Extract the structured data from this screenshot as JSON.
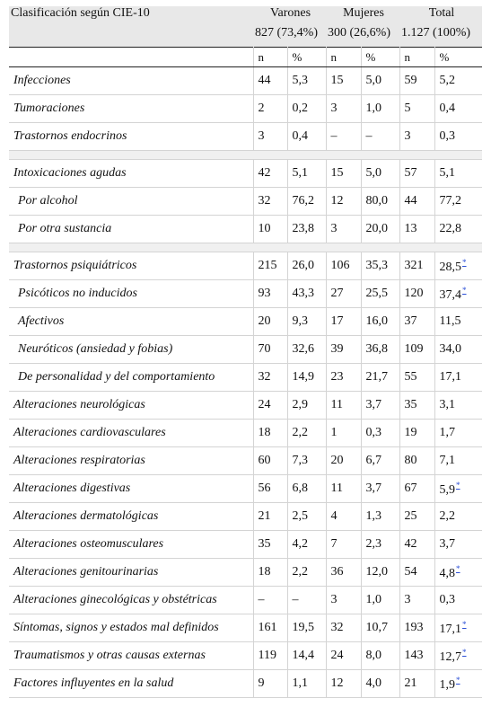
{
  "header": {
    "classification": "Clasificación según CIE-10",
    "groups": [
      {
        "label": "Varones",
        "total": "827 (73,4%)"
      },
      {
        "label": "Mujeres",
        "total": "300 (26,6%)"
      },
      {
        "label": "Total",
        "total": "1.127 (100%)"
      }
    ],
    "n": "n",
    "pct": "%"
  },
  "footnote_mark": "*",
  "rows": [
    {
      "type": "data",
      "label": "Infecciones",
      "v": [
        "44",
        "5,3",
        "15",
        "5,0",
        "59",
        "5,2"
      ]
    },
    {
      "type": "data",
      "label": "Tumoraciones",
      "v": [
        "2",
        "0,2",
        "3",
        "1,0",
        "5",
        "0,4"
      ]
    },
    {
      "type": "data",
      "label": "Trastornos endocrinos",
      "v": [
        "3",
        "0,4",
        "–",
        "–",
        "3",
        "0,3"
      ]
    },
    {
      "type": "spacer"
    },
    {
      "type": "data",
      "label": "Intoxicaciones agudas",
      "v": [
        "42",
        "5,1",
        "15",
        "5,0",
        "57",
        "5,1"
      ]
    },
    {
      "type": "data",
      "sub": true,
      "label": "Por alcohol",
      "v": [
        "32",
        "76,2",
        "12",
        "80,0",
        "44",
        "77,2"
      ]
    },
    {
      "type": "data",
      "sub": true,
      "label": "Por otra sustancia",
      "v": [
        "10",
        "23,8",
        "3",
        "20,0",
        "13",
        "22,8"
      ]
    },
    {
      "type": "spacer"
    },
    {
      "type": "data",
      "label": "Trastornos psiquiátricos",
      "v": [
        "215",
        "26,0",
        "106",
        "35,3",
        "321",
        "28,5"
      ],
      "mark": true
    },
    {
      "type": "data",
      "sub": true,
      "label": "Psicóticos no inducidos",
      "v": [
        "93",
        "43,3",
        "27",
        "25,5",
        "120",
        "37,4"
      ],
      "mark": true
    },
    {
      "type": "data",
      "sub": true,
      "label": "Afectivos",
      "v": [
        "20",
        "9,3",
        "17",
        "16,0",
        "37",
        "11,5"
      ]
    },
    {
      "type": "data",
      "sub": true,
      "label": "Neuróticos (ansiedad y fobias)",
      "v": [
        "70",
        "32,6",
        "39",
        "36,8",
        "109",
        "34,0"
      ]
    },
    {
      "type": "data",
      "sub": true,
      "label": "De personalidad y del comportamiento",
      "v": [
        "32",
        "14,9",
        "23",
        "21,7",
        "55",
        "17,1"
      ]
    },
    {
      "type": "data",
      "label": "Alteraciones neurológicas",
      "v": [
        "24",
        "2,9",
        "11",
        "3,7",
        "35",
        "3,1"
      ]
    },
    {
      "type": "data",
      "label": "Alteraciones cardiovasculares",
      "v": [
        "18",
        "2,2",
        "1",
        "0,3",
        "19",
        "1,7"
      ]
    },
    {
      "type": "data",
      "label": "Alteraciones respiratorias",
      "v": [
        "60",
        "7,3",
        "20",
        "6,7",
        "80",
        "7,1"
      ]
    },
    {
      "type": "data",
      "label": "Alteraciones digestivas",
      "v": [
        "56",
        "6,8",
        "11",
        "3,7",
        "67",
        "5,9"
      ],
      "mark": true
    },
    {
      "type": "data",
      "label": "Alteraciones dermatológicas",
      "v": [
        "21",
        "2,5",
        "4",
        "1,3",
        "25",
        "2,2"
      ]
    },
    {
      "type": "data",
      "label": "Alteraciones osteomusculares",
      "v": [
        "35",
        "4,2",
        "7",
        "2,3",
        "42",
        "3,7"
      ]
    },
    {
      "type": "data",
      "label": "Alteraciones genitourinarias",
      "v": [
        "18",
        "2,2",
        "36",
        "12,0",
        "54",
        "4,8"
      ],
      "mark": true
    },
    {
      "type": "data",
      "label": "Alteraciones ginecológicas y obstétricas",
      "v": [
        "–",
        "–",
        "3",
        "1,0",
        "3",
        "0,3"
      ]
    },
    {
      "type": "data",
      "label": "Síntomas, signos y estados mal definidos",
      "v": [
        "161",
        "19,5",
        "32",
        "10,7",
        "193",
        "17,1"
      ],
      "mark": true
    },
    {
      "type": "data",
      "label": "Traumatismos y otras causas externas",
      "v": [
        "119",
        "14,4",
        "24",
        "8,0",
        "143",
        "12,7"
      ],
      "mark": true
    },
    {
      "type": "data",
      "label": "Factores influyentes en la salud",
      "v": [
        "9",
        "1,1",
        "12",
        "4,0",
        "21",
        "1,9"
      ],
      "mark": true
    }
  ]
}
